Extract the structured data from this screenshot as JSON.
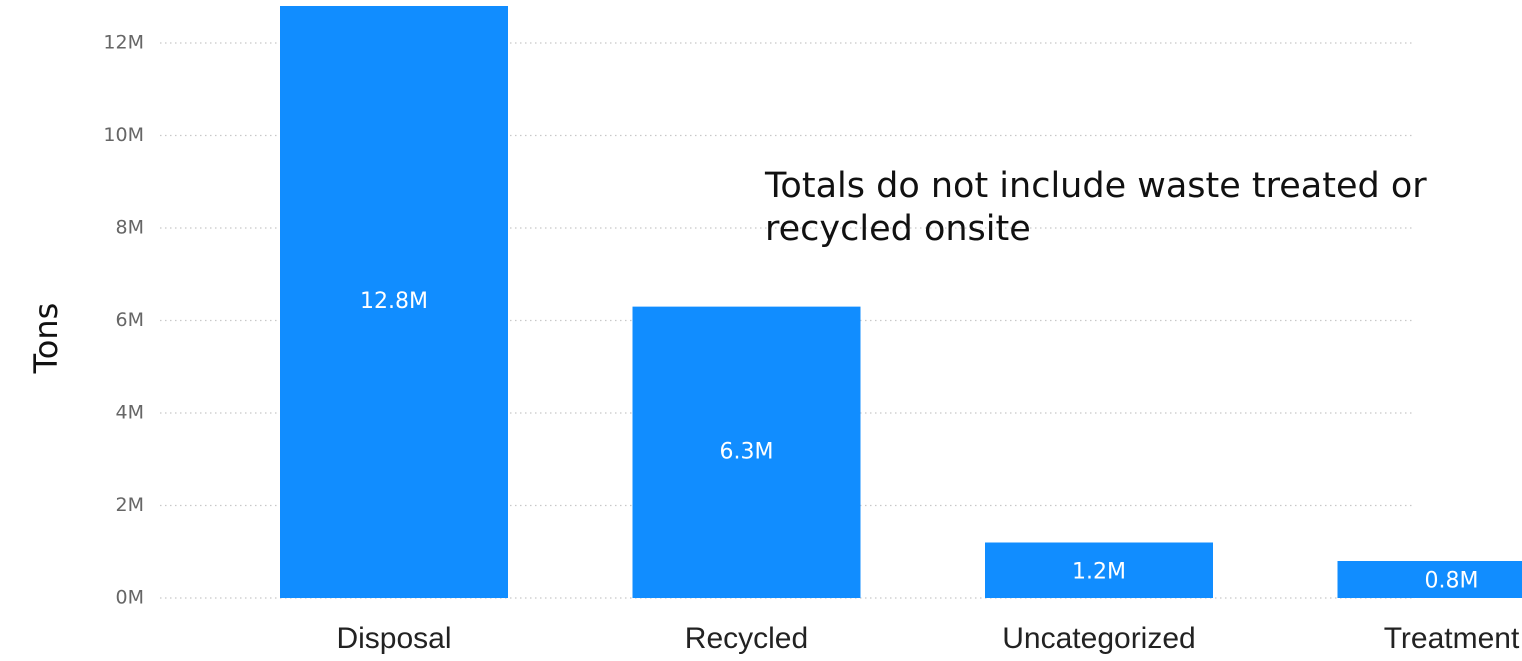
{
  "chart_data": {
    "type": "bar",
    "categories": [
      "Disposal",
      "Recycled",
      "Uncategorized",
      "Treatment"
    ],
    "values": [
      12.8,
      6.3,
      1.2,
      0.8
    ],
    "data_labels": [
      "12.8M",
      "6.3M",
      "1.2M",
      "0.8M"
    ],
    "unit": "M",
    "title": "",
    "xlabel": "",
    "ylabel": "Tons",
    "ylim": [
      0,
      12.8
    ],
    "yticks": [
      0,
      2,
      4,
      6,
      8,
      10,
      12
    ],
    "ytick_labels": [
      "0M",
      "2M",
      "4M",
      "6M",
      "8M",
      "10M",
      "12M"
    ],
    "grid": true,
    "legend": "none",
    "bar_color": "#118DFF",
    "annotation": {
      "line1": "Totals do not include waste treated or",
      "line2": "recycled onsite"
    }
  }
}
